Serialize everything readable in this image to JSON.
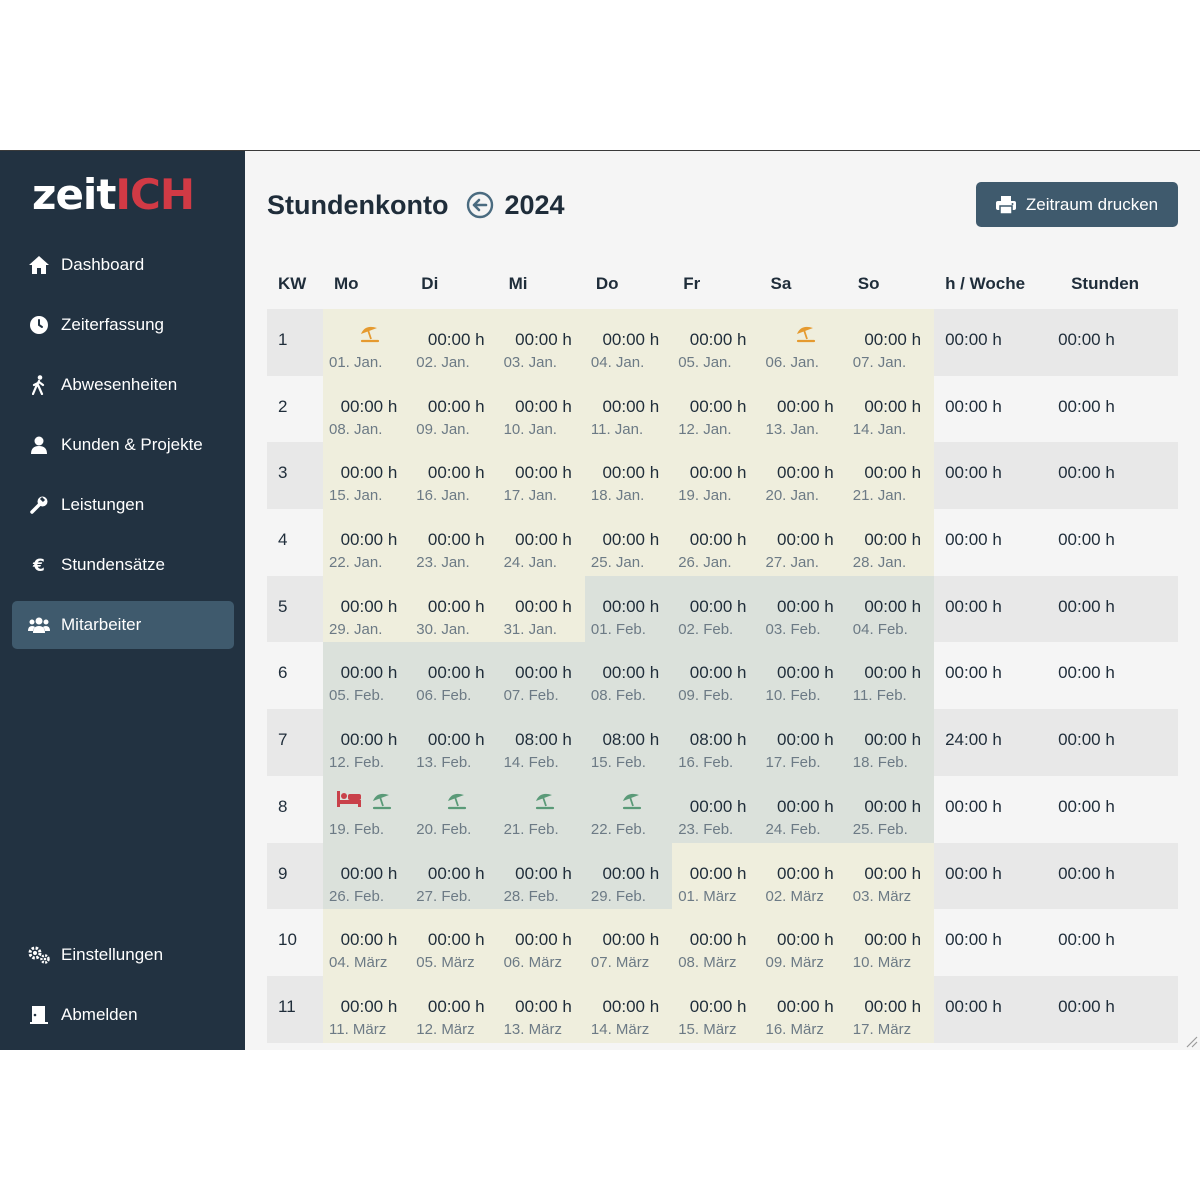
{
  "app": {
    "logo_part1": "zeit",
    "logo_part2": "ICH"
  },
  "sidebar": {
    "items": [
      {
        "label": "Dashboard",
        "icon": "home-icon"
      },
      {
        "label": "Zeiterfassung",
        "icon": "clock-icon"
      },
      {
        "label": "Abwesenheiten",
        "icon": "walking-icon"
      },
      {
        "label": "Kunden & Projekte",
        "icon": "user-icon"
      },
      {
        "label": "Leistungen",
        "icon": "wrench-icon"
      },
      {
        "label": "Stundensätze",
        "icon": "euro-icon"
      },
      {
        "label": "Mitarbeiter",
        "icon": "users-icon",
        "active": true
      }
    ],
    "bottom": [
      {
        "label": "Einstellungen",
        "icon": "gears-icon"
      },
      {
        "label": "Abmelden",
        "icon": "door-exit-icon"
      }
    ]
  },
  "header": {
    "title": "Stundenkonto",
    "year": "2024",
    "print_label": "Zeitraum drucken"
  },
  "table": {
    "headers": [
      "KW",
      "Mo",
      "Di",
      "Mi",
      "Do",
      "Fr",
      "Sa",
      "So",
      "h / Woche",
      "Stunden"
    ],
    "rows": [
      {
        "kw": "1",
        "week": "00:00 h",
        "stunden": "00:00 h",
        "days": [
          {
            "date": "01. Jan.",
            "icons": [
              "umbrella-orange"
            ]
          },
          {
            "val": "00:00 h",
            "date": "02. Jan."
          },
          {
            "val": "00:00 h",
            "date": "03. Jan."
          },
          {
            "val": "00:00 h",
            "date": "04. Jan."
          },
          {
            "val": "00:00 h",
            "date": "05. Jan."
          },
          {
            "date": "06. Jan.",
            "icons": [
              "umbrella-orange"
            ]
          },
          {
            "val": "00:00 h",
            "date": "07. Jan."
          }
        ]
      },
      {
        "kw": "2",
        "week": "00:00 h",
        "stunden": "00:00 h",
        "days": [
          {
            "val": "00:00 h",
            "date": "08. Jan."
          },
          {
            "val": "00:00 h",
            "date": "09. Jan."
          },
          {
            "val": "00:00 h",
            "date": "10. Jan."
          },
          {
            "val": "00:00 h",
            "date": "11. Jan."
          },
          {
            "val": "00:00 h",
            "date": "12. Jan."
          },
          {
            "val": "00:00 h",
            "date": "13. Jan."
          },
          {
            "val": "00:00 h",
            "date": "14. Jan."
          }
        ]
      },
      {
        "kw": "3",
        "week": "00:00 h",
        "stunden": "00:00 h",
        "days": [
          {
            "val": "00:00 h",
            "date": "15. Jan."
          },
          {
            "val": "00:00 h",
            "date": "16. Jan."
          },
          {
            "val": "00:00 h",
            "date": "17. Jan."
          },
          {
            "val": "00:00 h",
            "date": "18. Jan."
          },
          {
            "val": "00:00 h",
            "date": "19. Jan."
          },
          {
            "val": "00:00 h",
            "date": "20. Jan."
          },
          {
            "val": "00:00 h",
            "date": "21. Jan."
          }
        ]
      },
      {
        "kw": "4",
        "week": "00:00 h",
        "stunden": "00:00 h",
        "days": [
          {
            "val": "00:00 h",
            "date": "22. Jan."
          },
          {
            "val": "00:00 h",
            "date": "23. Jan."
          },
          {
            "val": "00:00 h",
            "date": "24. Jan."
          },
          {
            "val": "00:00 h",
            "date": "25. Jan."
          },
          {
            "val": "00:00 h",
            "date": "26. Jan."
          },
          {
            "val": "00:00 h",
            "date": "27. Jan."
          },
          {
            "val": "00:00 h",
            "date": "28. Jan."
          }
        ]
      },
      {
        "kw": "5",
        "week": "00:00 h",
        "stunden": "00:00 h",
        "days": [
          {
            "val": "00:00 h",
            "date": "29. Jan."
          },
          {
            "val": "00:00 h",
            "date": "30. Jan."
          },
          {
            "val": "00:00 h",
            "date": "31. Jan."
          },
          {
            "val": "00:00 h",
            "date": "01. Feb."
          },
          {
            "val": "00:00 h",
            "date": "02. Feb."
          },
          {
            "val": "00:00 h",
            "date": "03. Feb."
          },
          {
            "val": "00:00 h",
            "date": "04. Feb."
          }
        ]
      },
      {
        "kw": "6",
        "week": "00:00 h",
        "stunden": "00:00 h",
        "days": [
          {
            "val": "00:00 h",
            "date": "05. Feb."
          },
          {
            "val": "00:00 h",
            "date": "06. Feb."
          },
          {
            "val": "00:00 h",
            "date": "07. Feb."
          },
          {
            "val": "00:00 h",
            "date": "08. Feb."
          },
          {
            "val": "00:00 h",
            "date": "09. Feb."
          },
          {
            "val": "00:00 h",
            "date": "10. Feb."
          },
          {
            "val": "00:00 h",
            "date": "11. Feb."
          }
        ]
      },
      {
        "kw": "7",
        "week": "24:00 h",
        "stunden": "00:00 h",
        "days": [
          {
            "val": "00:00 h",
            "date": "12. Feb."
          },
          {
            "val": "00:00 h",
            "date": "13. Feb."
          },
          {
            "val": "08:00 h",
            "date": "14. Feb."
          },
          {
            "val": "08:00 h",
            "date": "15. Feb."
          },
          {
            "val": "08:00 h",
            "date": "16. Feb."
          },
          {
            "val": "00:00 h",
            "date": "17. Feb."
          },
          {
            "val": "00:00 h",
            "date": "18. Feb."
          }
        ]
      },
      {
        "kw": "8",
        "week": "00:00 h",
        "stunden": "00:00 h",
        "days": [
          {
            "date": "19. Feb.",
            "icons": [
              "bed-red",
              "umbrella-green"
            ]
          },
          {
            "date": "20. Feb.",
            "icons": [
              "umbrella-green"
            ]
          },
          {
            "date": "21. Feb.",
            "icons": [
              "umbrella-green"
            ]
          },
          {
            "date": "22. Feb.",
            "icons": [
              "umbrella-green"
            ]
          },
          {
            "val": "00:00 h",
            "date": "23. Feb."
          },
          {
            "val": "00:00 h",
            "date": "24. Feb."
          },
          {
            "val": "00:00 h",
            "date": "25. Feb."
          }
        ]
      },
      {
        "kw": "9",
        "week": "00:00 h",
        "stunden": "00:00 h",
        "days": [
          {
            "val": "00:00 h",
            "date": "26. Feb."
          },
          {
            "val": "00:00 h",
            "date": "27. Feb."
          },
          {
            "val": "00:00 h",
            "date": "28. Feb."
          },
          {
            "val": "00:00 h",
            "date": "29. Feb."
          },
          {
            "val": "00:00 h",
            "date": "01. März"
          },
          {
            "val": "00:00 h",
            "date": "02. März"
          },
          {
            "val": "00:00 h",
            "date": "03. März"
          }
        ]
      },
      {
        "kw": "10",
        "week": "00:00 h",
        "stunden": "00:00 h",
        "days": [
          {
            "val": "00:00 h",
            "date": "04. März"
          },
          {
            "val": "00:00 h",
            "date": "05. März"
          },
          {
            "val": "00:00 h",
            "date": "06. März"
          },
          {
            "val": "00:00 h",
            "date": "07. März"
          },
          {
            "val": "00:00 h",
            "date": "08. März"
          },
          {
            "val": "00:00 h",
            "date": "09. März"
          },
          {
            "val": "00:00 h",
            "date": "10. März"
          }
        ]
      },
      {
        "kw": "11",
        "week": "00:00 h",
        "stunden": "00:00 h",
        "days": [
          {
            "val": "00:00 h",
            "date": "11. März"
          },
          {
            "val": "00:00 h",
            "date": "12. März"
          },
          {
            "val": "00:00 h",
            "date": "13. März"
          },
          {
            "val": "00:00 h",
            "date": "14. März"
          },
          {
            "val": "00:00 h",
            "date": "15. März"
          },
          {
            "val": "00:00 h",
            "date": "16. März"
          },
          {
            "val": "00:00 h",
            "date": "17. März"
          }
        ]
      }
    ]
  },
  "colors": {
    "sidebar": "#223241",
    "accent": "#3f5a6d",
    "logo_red": "#d13a45",
    "jan_bg": "#efeedd",
    "feb_bg": "#dbe1db",
    "vacation_orange": "#e59a2f",
    "vacation_green": "#5a9a78",
    "sick_red": "#c9414a"
  }
}
